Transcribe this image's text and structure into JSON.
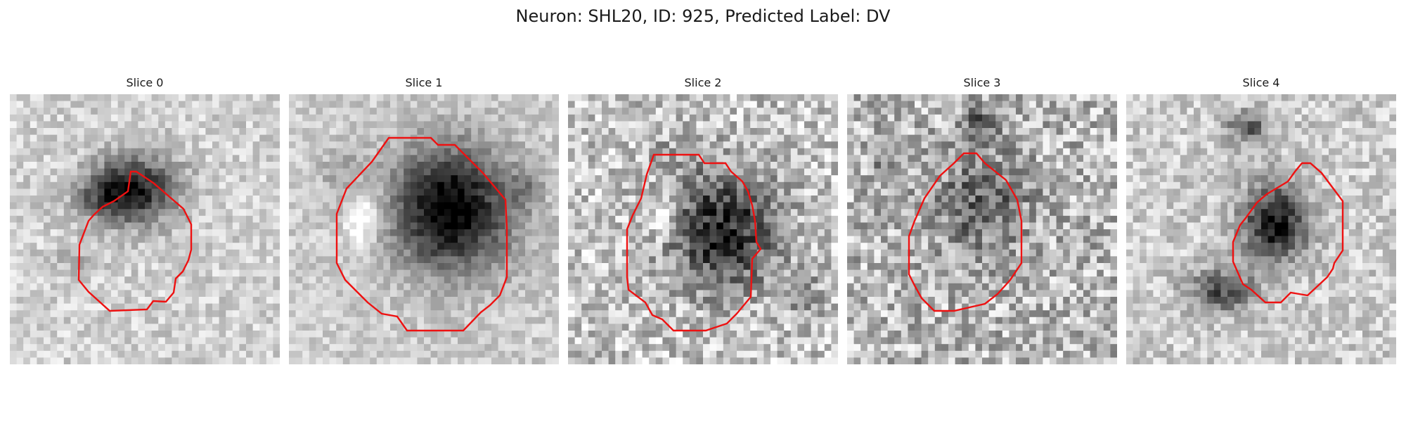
{
  "figure": {
    "title": "Neuron: SHL20, ID: 925, Predicted Label: DV"
  },
  "panels": [
    {
      "title": "Slice 0"
    },
    {
      "title": "Slice 1"
    },
    {
      "title": "Slice 2"
    },
    {
      "title": "Slice 3"
    },
    {
      "title": "Slice 4"
    }
  ],
  "colors": {
    "contour": "#ee1111",
    "background": "#ffffff",
    "text": "#1a1a1a"
  }
}
